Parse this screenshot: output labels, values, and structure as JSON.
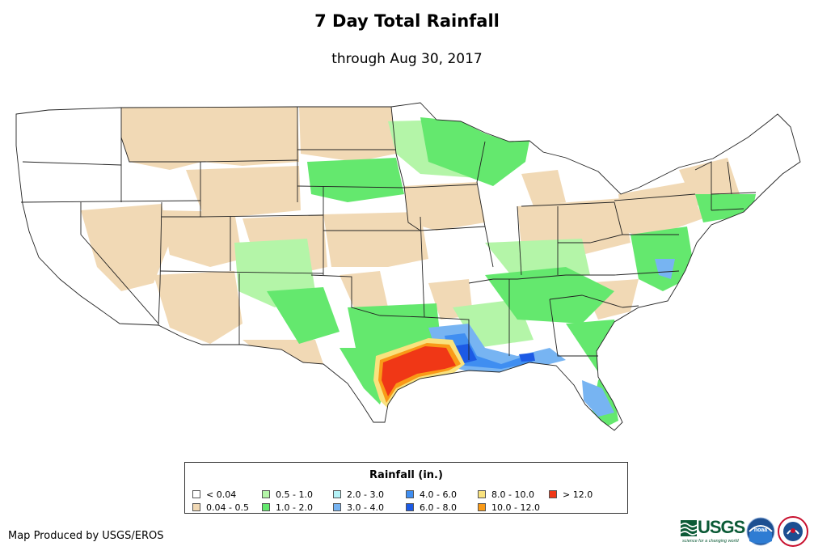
{
  "title": "7 Day Total Rainfall",
  "subtitle": "through Aug 30, 2017",
  "legend": {
    "title": "Rainfall (in.)",
    "items": [
      {
        "label": "< 0.04",
        "color": "#ffffff"
      },
      {
        "label": "0.04 - 0.5",
        "color": "#f1d9b5"
      },
      {
        "label": "0.5 - 1.0",
        "color": "#b4f5a8"
      },
      {
        "label": "1.0 - 2.0",
        "color": "#64e86e"
      },
      {
        "label": "2.0 - 3.0",
        "color": "#b4f2f7"
      },
      {
        "label": "3.0 - 4.0",
        "color": "#77b4f2"
      },
      {
        "label": "4.0 - 6.0",
        "color": "#3f8ef1"
      },
      {
        "label": "6.0 - 8.0",
        "color": "#1c5ae5"
      },
      {
        "label": "8.0 - 10.0",
        "color": "#f9e27e"
      },
      {
        "label": "10.0 - 12.0",
        "color": "#f99a17"
      },
      {
        "label": "> 12.0",
        "color": "#f03716"
      }
    ]
  },
  "credit": "Map Produced by USGS/EROS",
  "logos": {
    "usgs_text": "USGS",
    "usgs_tagline": "science for a changing world",
    "noaa_text": "noaa"
  }
}
